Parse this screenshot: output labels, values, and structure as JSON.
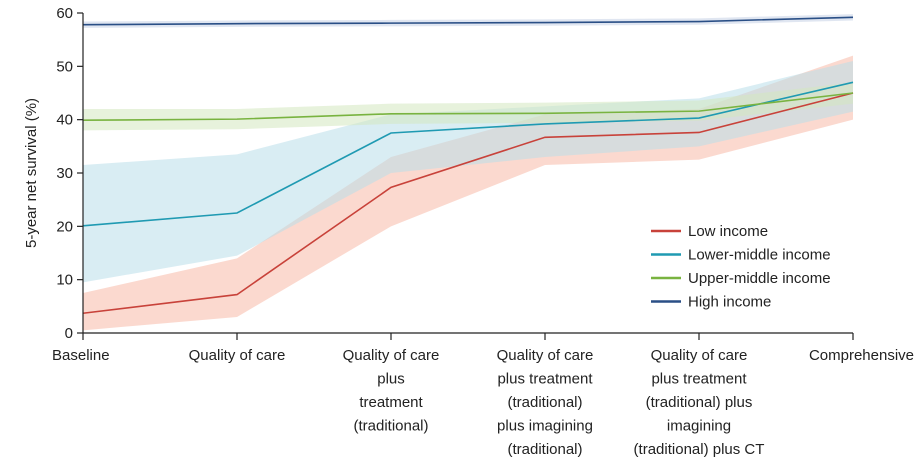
{
  "chart_data": {
    "type": "line",
    "title": "",
    "xlabel": "",
    "ylabel": "5-year net survival (%)",
    "ylim": [
      0,
      60
    ],
    "yticks": [
      0,
      10,
      20,
      30,
      40,
      50,
      60
    ],
    "grid": false,
    "legend_position": "right",
    "categories": [
      [
        "Baseline"
      ],
      [
        "Quality of care"
      ],
      [
        "Quality of care",
        "plus",
        "treatment",
        "(traditional)"
      ],
      [
        "Quality of care",
        "plus treatment",
        "(traditional)",
        "plus  imagining",
        "(traditional)"
      ],
      [
        "Quality of care",
        "plus treatment",
        "(traditional) plus",
        "imagining",
        "(traditional) plus CT"
      ],
      [
        "Comprehensive"
      ]
    ],
    "series": [
      {
        "name": "Low income",
        "color": "#c8423a",
        "band_color": "#f7b9a8",
        "values": [
          3.7,
          7.2,
          27.3,
          36.7,
          37.6,
          45.0
        ],
        "lower": [
          0.5,
          3.0,
          20.0,
          31.5,
          32.5,
          40.0
        ],
        "upper": [
          7.5,
          14.0,
          33.0,
          41.0,
          42.0,
          52.0
        ]
      },
      {
        "name": "Lower-middle income",
        "color": "#1f9ab2",
        "band_color": "#b9dfea",
        "values": [
          20.1,
          22.5,
          37.5,
          39.2,
          40.3,
          47.0
        ],
        "lower": [
          9.5,
          14.5,
          30.0,
          33.0,
          35.0,
          41.5
        ],
        "upper": [
          31.5,
          33.5,
          41.0,
          42.5,
          44.0,
          51.0
        ]
      },
      {
        "name": "Upper-middle income",
        "color": "#79b340",
        "band_color": "#d3e7c0",
        "values": [
          39.9,
          40.1,
          41.1,
          41.2,
          41.6,
          45.0
        ],
        "lower": [
          38.0,
          38.2,
          39.2,
          39.4,
          39.8,
          43.0
        ],
        "upper": [
          42.0,
          42.0,
          43.0,
          43.2,
          43.6,
          47.0
        ]
      },
      {
        "name": "High income",
        "color": "#2a4f86",
        "band_color": "#c6d1e6",
        "values": [
          57.8,
          58.0,
          58.1,
          58.2,
          58.4,
          59.2
        ],
        "lower": [
          57.2,
          57.4,
          57.5,
          57.6,
          57.8,
          58.6
        ],
        "upper": [
          58.4,
          58.6,
          58.7,
          58.8,
          59.0,
          59.8
        ]
      }
    ]
  }
}
